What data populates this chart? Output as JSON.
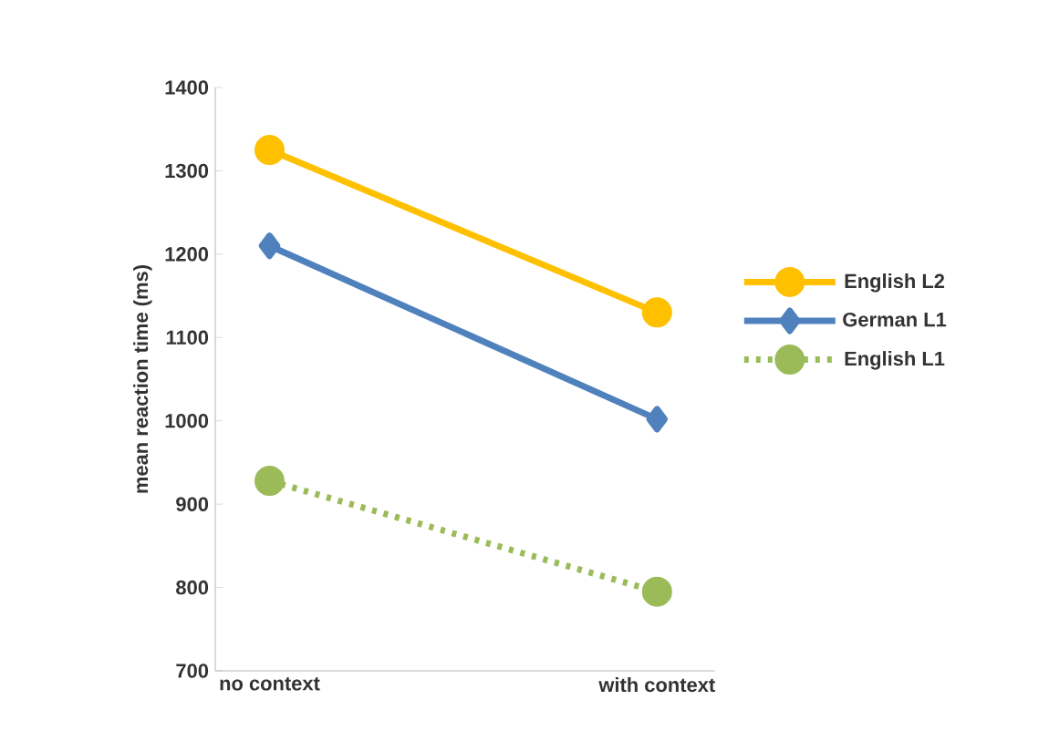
{
  "chart_data": {
    "type": "line",
    "ylabel": "mean reaction time (ms)",
    "categories": [
      "no context",
      "with context"
    ],
    "series": [
      {
        "name": "English L2",
        "color": "#ffc000",
        "values": [
          1325,
          1130
        ],
        "marker": "circle",
        "line_style": "solid"
      },
      {
        "name": "German L1",
        "color": "#4f81bd",
        "values": [
          1210,
          1002
        ],
        "marker": "diamond",
        "line_style": "solid"
      },
      {
        "name": "English L1",
        "color": "#9bbb59",
        "values": [
          928,
          795
        ],
        "marker": "circle",
        "line_style": "dotted"
      }
    ],
    "ylim": [
      700,
      1400
    ],
    "yticks": [
      700,
      800,
      900,
      1000,
      1100,
      1200,
      1300,
      1400
    ],
    "legend": "right"
  }
}
